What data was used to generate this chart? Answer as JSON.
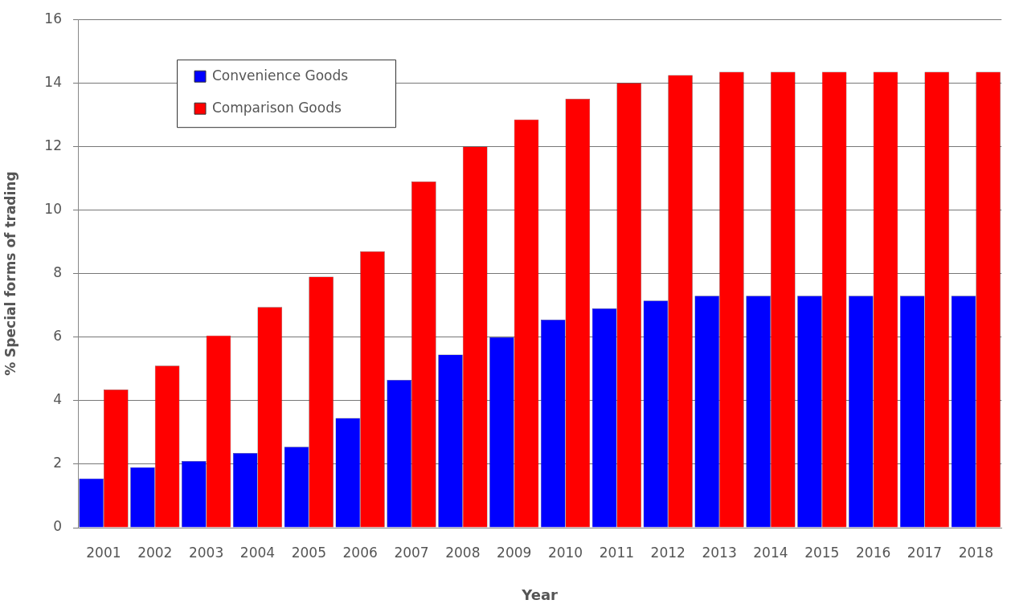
{
  "chart_data": {
    "type": "bar",
    "xlabel": "Year",
    "ylabel": "% Special forms of trading",
    "categories": [
      "2001",
      "2002",
      "2003",
      "2004",
      "2005",
      "2006",
      "2007",
      "2008",
      "2009",
      "2010",
      "2011",
      "2012",
      "2013",
      "2014",
      "2015",
      "2016",
      "2017",
      "2018"
    ],
    "series": [
      {
        "name": "Convenience Goods",
        "color": "#0000ff",
        "values": [
          1.55,
          1.9,
          2.1,
          2.35,
          2.55,
          3.45,
          4.65,
          5.45,
          6.0,
          6.55,
          6.9,
          7.15,
          7.3,
          7.3,
          7.3,
          7.3,
          7.3,
          7.3
        ]
      },
      {
        "name": "Comparison Goods",
        "color": "#ff0000",
        "values": [
          4.35,
          5.1,
          6.05,
          6.95,
          7.9,
          8.7,
          10.9,
          12.0,
          12.85,
          13.5,
          14.0,
          14.25,
          14.35,
          14.35,
          14.35,
          14.35,
          14.35,
          14.35
        ]
      }
    ],
    "ylim": [
      0,
      16
    ],
    "yticks": [
      0,
      2,
      4,
      6,
      8,
      10,
      12,
      14,
      16
    ],
    "grid": "y",
    "legend": "top left"
  }
}
